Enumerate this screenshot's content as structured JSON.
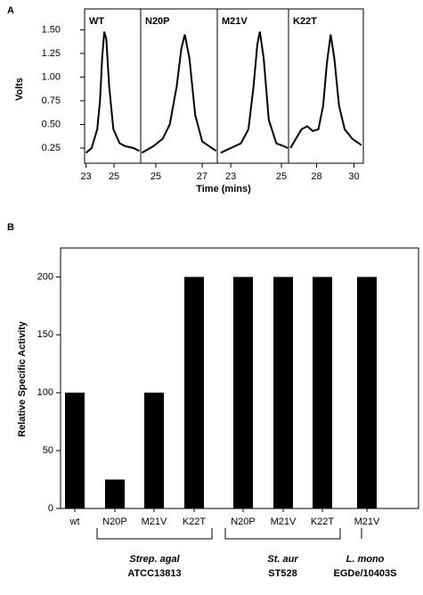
{
  "chart_data": [
    {
      "type": "line-panels",
      "label": "A",
      "ylabel": "Volts",
      "xlabel": "Time (mins)",
      "color": "#000000",
      "ylim": [
        0.09,
        1.72
      ],
      "yticks": [
        {
          "value": 0.25,
          "label": "0.25"
        },
        {
          "value": 0.5,
          "label": "0.50"
        },
        {
          "value": 0.75,
          "label": "0.75"
        },
        {
          "value": 1,
          "label": "1.00"
        },
        {
          "value": 1.25,
          "label": "1.25"
        },
        {
          "value": 1.5,
          "label": "1.50"
        }
      ],
      "panels": [
        {
          "title": "WT",
          "xlim": [
            22.9,
            26.9
          ],
          "xticks": [
            23,
            25
          ],
          "x": [
            23.0,
            23.4,
            23.8,
            24.0,
            24.15,
            24.3,
            24.45,
            24.65,
            24.95,
            25.4,
            25.8,
            26.4,
            26.8
          ],
          "values": [
            0.2,
            0.25,
            0.45,
            0.75,
            1.2,
            1.48,
            1.4,
            0.9,
            0.45,
            0.3,
            0.27,
            0.25,
            0.22
          ]
        },
        {
          "title": "N20P",
          "xlim": [
            24.35,
            27.65
          ],
          "xticks": [
            25,
            27
          ],
          "x": [
            24.4,
            24.9,
            25.3,
            25.6,
            25.9,
            26.1,
            26.25,
            26.45,
            26.7,
            27.0,
            27.3,
            27.6
          ],
          "values": [
            0.2,
            0.27,
            0.35,
            0.5,
            0.9,
            1.3,
            1.45,
            1.2,
            0.6,
            0.32,
            0.27,
            0.22
          ]
        },
        {
          "title": "M21V",
          "xlim": [
            22.47,
            25.28
          ],
          "xticks": [
            23,
            25
          ],
          "x": [
            22.6,
            23.0,
            23.4,
            23.7,
            23.9,
            24.05,
            24.15,
            24.3,
            24.5,
            24.8,
            25.1,
            25.25
          ],
          "values": [
            0.2,
            0.25,
            0.3,
            0.45,
            0.9,
            1.35,
            1.48,
            1.2,
            0.55,
            0.3,
            0.27,
            0.25
          ]
        },
        {
          "title": "K22T",
          "xlim": [
            26.5,
            30.5
          ],
          "xticks": [
            28,
            30
          ],
          "x": [
            26.6,
            26.9,
            27.2,
            27.5,
            27.8,
            28.1,
            28.35,
            28.55,
            28.75,
            28.95,
            29.2,
            29.5,
            29.9,
            30.4
          ],
          "values": [
            0.25,
            0.35,
            0.45,
            0.48,
            0.43,
            0.45,
            0.7,
            1.15,
            1.45,
            1.2,
            0.7,
            0.45,
            0.35,
            0.28
          ]
        }
      ]
    },
    {
      "type": "bar",
      "label": "B",
      "ylabel": "Relative Specific Activity",
      "color": "#000000",
      "categories": [
        "wt",
        "N20P",
        "M21V",
        "K22T",
        "N20P",
        "M21V",
        "K22T",
        "M21V"
      ],
      "values": [
        100,
        25,
        100,
        200,
        200,
        200,
        200,
        200
      ],
      "ylim": [
        0,
        225
      ],
      "yticks": [
        0,
        50,
        100,
        150,
        200
      ],
      "groups": [
        {
          "name": "Strep. agal",
          "sub": "ATCC13813"
        },
        {
          "name": "St. aur",
          "sub": "ST528"
        },
        {
          "name": "L. mono",
          "sub": "EGDe/10403S"
        }
      ]
    }
  ]
}
